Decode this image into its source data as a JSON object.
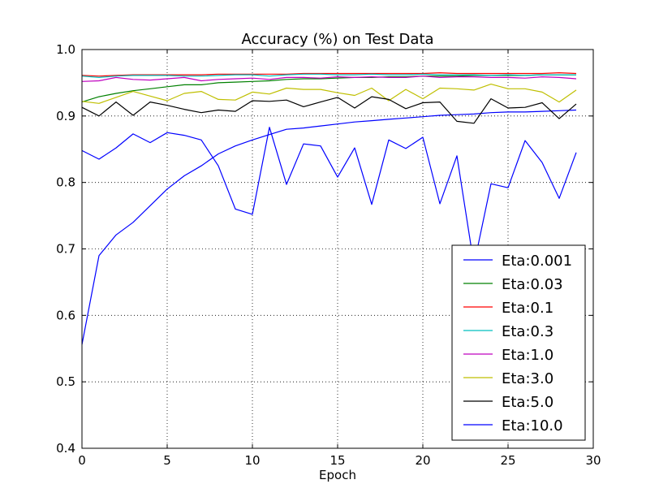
{
  "chart_data": {
    "type": "line",
    "title": "Accuracy (%) on Test Data",
    "xlabel": "Epoch",
    "ylabel": "",
    "xlim": [
      0,
      30
    ],
    "ylim": [
      0.4,
      1.0
    ],
    "xticks": [
      0,
      5,
      10,
      15,
      20,
      25,
      30
    ],
    "yticks": [
      0.4,
      0.5,
      0.6,
      0.7,
      0.8,
      0.9,
      1.0
    ],
    "xtick_labels": [
      "0",
      "5",
      "10",
      "15",
      "20",
      "25",
      "30"
    ],
    "ytick_labels": [
      "0.4",
      "0.5",
      "0.6",
      "0.7",
      "0.8",
      "0.9",
      "1.0"
    ],
    "grid": true,
    "legend_position": "lower-right",
    "x": [
      0,
      1,
      2,
      3,
      4,
      5,
      6,
      7,
      8,
      9,
      10,
      11,
      12,
      13,
      14,
      15,
      16,
      17,
      18,
      19,
      20,
      21,
      22,
      23,
      24,
      25,
      26,
      27,
      28,
      29
    ],
    "series": [
      {
        "name": "Eta:0.001",
        "color": "#0000ff",
        "values": [
          0.556,
          0.69,
          0.721,
          0.74,
          0.765,
          0.79,
          0.81,
          0.825,
          0.843,
          0.855,
          0.864,
          0.872,
          0.88,
          0.882,
          0.885,
          0.888,
          0.891,
          0.893,
          0.895,
          0.897,
          0.899,
          0.901,
          0.902,
          0.903,
          0.905,
          0.906,
          0.906,
          0.907,
          0.908,
          0.909
        ]
      },
      {
        "name": "Eta:0.03",
        "color": "#008000",
        "values": [
          0.921,
          0.929,
          0.934,
          0.938,
          0.941,
          0.944,
          0.947,
          0.947,
          0.95,
          0.951,
          0.952,
          0.953,
          0.955,
          0.956,
          0.956,
          0.957,
          0.958,
          0.958,
          0.959,
          0.959,
          0.96,
          0.96,
          0.96,
          0.961,
          0.961,
          0.961,
          0.961,
          0.962,
          0.962,
          0.962
        ]
      },
      {
        "name": "Eta:0.1",
        "color": "#ff0000",
        "values": [
          0.961,
          0.96,
          0.961,
          0.962,
          0.962,
          0.962,
          0.962,
          0.962,
          0.963,
          0.963,
          0.963,
          0.963,
          0.963,
          0.964,
          0.964,
          0.964,
          0.964,
          0.964,
          0.964,
          0.964,
          0.964,
          0.965,
          0.964,
          0.964,
          0.964,
          0.964,
          0.964,
          0.964,
          0.965,
          0.964
        ]
      },
      {
        "name": "Eta:0.3",
        "color": "#00bfbf",
        "values": [
          0.96,
          0.958,
          0.96,
          0.961,
          0.961,
          0.961,
          0.96,
          0.96,
          0.961,
          0.962,
          0.962,
          0.96,
          0.962,
          0.963,
          0.963,
          0.962,
          0.962,
          0.963,
          0.962,
          0.962,
          0.963,
          0.962,
          0.962,
          0.962,
          0.961,
          0.962,
          0.961,
          0.962,
          0.962,
          0.962
        ]
      },
      {
        "name": "Eta:1.0",
        "color": "#bf00bf",
        "values": [
          0.952,
          0.953,
          0.958,
          0.955,
          0.954,
          0.956,
          0.958,
          0.953,
          0.955,
          0.956,
          0.957,
          0.955,
          0.958,
          0.958,
          0.957,
          0.959,
          0.958,
          0.959,
          0.958,
          0.958,
          0.96,
          0.958,
          0.959,
          0.959,
          0.958,
          0.958,
          0.957,
          0.959,
          0.958,
          0.956
        ]
      },
      {
        "name": "Eta:3.0",
        "color": "#bfbf00",
        "values": [
          0.922,
          0.919,
          0.928,
          0.937,
          0.93,
          0.923,
          0.934,
          0.937,
          0.925,
          0.924,
          0.936,
          0.933,
          0.942,
          0.94,
          0.94,
          0.935,
          0.931,
          0.942,
          0.923,
          0.94,
          0.926,
          0.942,
          0.941,
          0.939,
          0.948,
          0.941,
          0.941,
          0.936,
          0.921,
          0.939
        ]
      },
      {
        "name": "Eta:5.0",
        "color": "#000000",
        "values": [
          0.913,
          0.9,
          0.921,
          0.901,
          0.921,
          0.916,
          0.91,
          0.905,
          0.909,
          0.907,
          0.923,
          0.922,
          0.924,
          0.914,
          0.921,
          0.928,
          0.912,
          0.929,
          0.925,
          0.911,
          0.92,
          0.921,
          0.892,
          0.889,
          0.926,
          0.912,
          0.913,
          0.92,
          0.896,
          0.918
        ]
      },
      {
        "name": "Eta:10.0",
        "color": "#0000ff",
        "values": [
          0.848,
          0.835,
          0.852,
          0.873,
          0.86,
          0.875,
          0.871,
          0.864,
          0.825,
          0.76,
          0.752,
          0.883,
          0.797,
          0.858,
          0.855,
          0.808,
          0.852,
          0.767,
          0.864,
          0.851,
          0.868,
          0.768,
          0.84,
          0.676,
          0.798,
          0.792,
          0.863,
          0.83,
          0.776,
          0.845
        ]
      }
    ]
  }
}
